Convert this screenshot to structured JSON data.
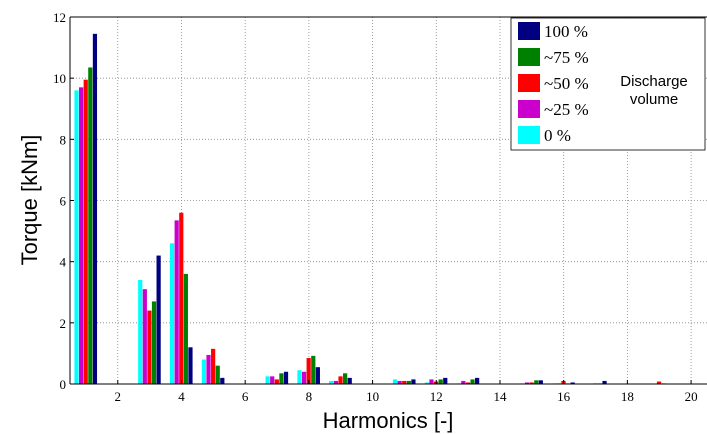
{
  "chart_data": {
    "type": "bar",
    "xlabel": "Harmonics [-]",
    "ylabel": "Torque [kNm]",
    "xlim": [
      0.5,
      20.5
    ],
    "ylim": [
      0,
      12
    ],
    "xticks": [
      2,
      4,
      6,
      8,
      10,
      12,
      14,
      16,
      18,
      20
    ],
    "yticks": [
      0,
      2,
      4,
      6,
      8,
      10,
      12
    ],
    "grid": true,
    "legend_position": "top-right",
    "annotation": [
      "Discharge",
      "volume"
    ],
    "categories": [
      1,
      3,
      4,
      5,
      7,
      8,
      9,
      11,
      12,
      13,
      15,
      16,
      17,
      19
    ],
    "series": [
      {
        "name": "0 %",
        "color": "#00ffff",
        "values": [
          9.6,
          3.4,
          4.6,
          0.8,
          0.25,
          0.45,
          0.1,
          0.15,
          0.05,
          0.02,
          0.02,
          0.02,
          0.0,
          0.0
        ]
      },
      {
        "name": "~25 %",
        "color": "#cc00cc",
        "values": [
          9.7,
          3.1,
          5.35,
          0.95,
          0.25,
          0.4,
          0.1,
          0.1,
          0.15,
          0.1,
          0.05,
          0.02,
          0.0,
          0.0
        ]
      },
      {
        "name": "~50 %",
        "color": "#ff0000",
        "values": [
          9.95,
          2.4,
          5.6,
          1.15,
          0.15,
          0.85,
          0.25,
          0.1,
          0.08,
          0.05,
          0.05,
          0.1,
          0.02,
          0.08
        ]
      },
      {
        "name": "~75 %",
        "color": "#008000",
        "values": [
          10.35,
          2.7,
          3.6,
          0.6,
          0.35,
          0.92,
          0.35,
          0.1,
          0.15,
          0.15,
          0.12,
          0.02,
          0.02,
          0.02
        ]
      },
      {
        "name": "100 %",
        "color": "#000080",
        "values": [
          11.45,
          4.2,
          1.2,
          0.2,
          0.4,
          0.55,
          0.2,
          0.15,
          0.2,
          0.2,
          0.12,
          0.05,
          0.1,
          0.0
        ]
      }
    ],
    "legend_order": [
      "100 %",
      "~75 %",
      "~50 %",
      "~25 %",
      "0 %"
    ]
  }
}
